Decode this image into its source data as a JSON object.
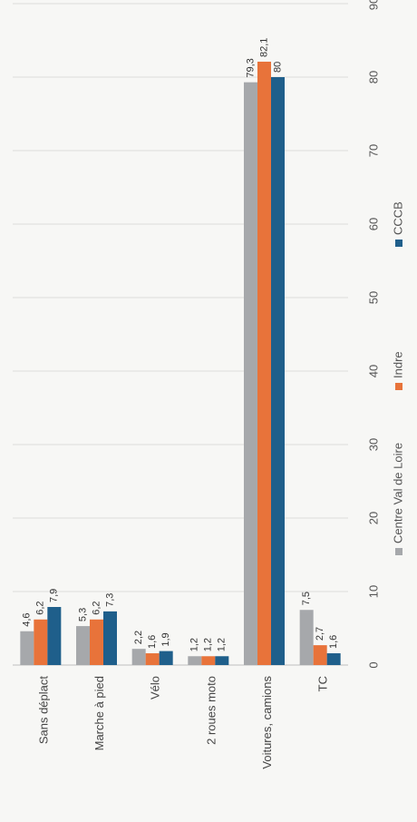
{
  "chart_data": {
    "type": "bar",
    "orientation": "rotated-90",
    "categories": [
      "Sans déplact",
      "Marche à pied",
      "Vélo",
      "2 roues moto",
      "Voitures, camions",
      "TC"
    ],
    "series": [
      {
        "name": "Centre Val de Loire",
        "color": "#a6a8ab",
        "values": [
          4.6,
          5.3,
          2.2,
          1.2,
          79.3,
          7.5
        ],
        "labels": [
          "4,6",
          "5,3",
          "2,2",
          "1,2",
          "79,3",
          "7,5"
        ]
      },
      {
        "name": "Indre",
        "color": "#e8733a",
        "values": [
          6.2,
          6.2,
          1.6,
          1.2,
          82.1,
          2.7
        ],
        "labels": [
          "6,2",
          "6,2",
          "1,6",
          "1,2",
          "82,1",
          "2,7"
        ]
      },
      {
        "name": "CCCB",
        "color": "#1f5f8b",
        "values": [
          7.9,
          7.3,
          1.9,
          1.2,
          80,
          1.6
        ],
        "labels": [
          "7,9",
          "7,3",
          "1,9",
          "1,2",
          "80",
          "1,6"
        ]
      }
    ],
    "ylim": [
      0,
      90
    ],
    "yticks": [
      "0",
      "10",
      "20",
      "30",
      "40",
      "50",
      "60",
      "70",
      "80",
      "90"
    ],
    "grid": true,
    "legend": "bottom"
  }
}
